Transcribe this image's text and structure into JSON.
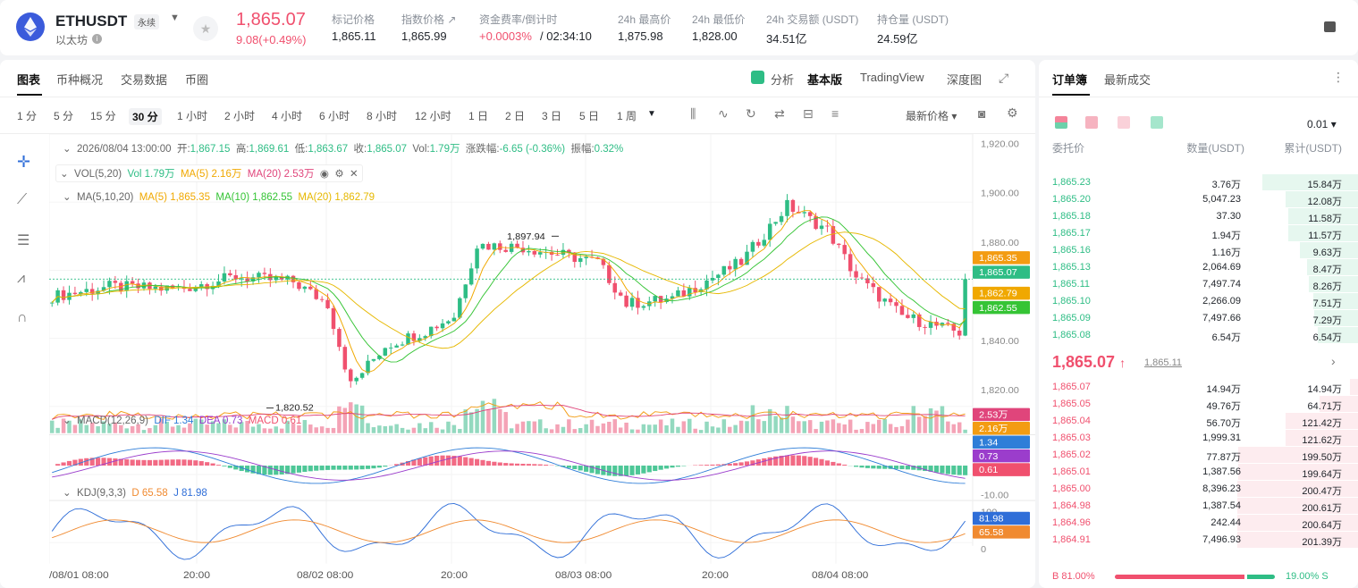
{
  "header": {
    "symbol": "ETHUSDT",
    "badge": "永续",
    "subname": "以太坊",
    "price": "1,865.07",
    "change": "9.08(+0.49%)",
    "stats": [
      {
        "label": "标记价格",
        "value": "1,865.11"
      },
      {
        "label": "指数价格 ↗",
        "value": "1,865.99"
      },
      {
        "label": "资金费率/倒计时",
        "value": "+0.0003%",
        "value2": "/ 02:34:10"
      },
      {
        "label": "24h 最高价",
        "value": "1,875.98"
      },
      {
        "label": "24h 最低价",
        "value": "1,828.00"
      },
      {
        "label": "24h 交易额 (USDT)",
        "value": "34.51亿"
      },
      {
        "label": "持仓量 (USDT)",
        "value": "24.59亿"
      }
    ],
    "colors": {
      "up": "#2ebd85",
      "down": "#f0506e"
    }
  },
  "chart": {
    "tabs": [
      "图表",
      "币种概况",
      "交易数据",
      "币圈"
    ],
    "right_tabs": [
      "分析",
      "基本版",
      "TradingView",
      "深度图"
    ],
    "timeframes": [
      "1 分",
      "5 分",
      "15 分",
      "30 分",
      "1 小时",
      "2 小时",
      "4 小时",
      "6 小时",
      "8 小时",
      "12 小时",
      "1 日",
      "2 日",
      "3 日",
      "5 日",
      "1 周"
    ],
    "active_tf": "30 分",
    "price_mode": "最新价格",
    "ohlc": {
      "date": "2026/08/04 13:00:00",
      "open_l": "开:",
      "open": "1,867.15",
      "high_l": "高:",
      "high": "1,869.61",
      "low_l": "低:",
      "low": "1,863.67",
      "close_l": "收:",
      "close": "1,865.07",
      "vol_l": "Vol:",
      "vol": "1.79万",
      "chg_l": "涨跌幅:",
      "chg": "-6.65 (-0.36%)",
      "amp_l": "振幅:",
      "amp": "0.32%"
    },
    "vol_legend": {
      "name": "VOL(5,20)",
      "vol": "Vol 1.79万",
      "ma5": "MA(5) 2.16万",
      "ma20": "MA(20) 2.53万"
    },
    "ma_legend": {
      "name": "MA(5,10,20)",
      "ma5": "MA(5) 1,865.35",
      "ma10": "MA(10) 1,862.55",
      "ma20": "MA(20) 1,862.79"
    },
    "macd_legend": {
      "name": "MACD(12,26,9)",
      "dif": "DIF 1.34",
      "dea": "DEA 0.73",
      "macd": "MACD 0.61"
    },
    "kdj_legend": {
      "name": "KDJ(9,3,3)",
      "d": "D 65.58",
      "j": "J 81.98"
    },
    "price_axis": [
      "1,920.00",
      "1,900.00",
      "1,880.00",
      "1,860.00",
      "1,840.00",
      "1,820.00"
    ],
    "price_tags": [
      {
        "v": "1,865.35",
        "c": "#f39c12"
      },
      {
        "v": "1,865.07",
        "c": "#2ebd85"
      },
      {
        "v": "1,862.79",
        "c": "#f0a800"
      },
      {
        "v": "1,862.55",
        "c": "#35c435"
      }
    ],
    "vol_tags": [
      {
        "v": "2.53万",
        "c": "#e0457b"
      },
      {
        "v": "2.16万",
        "c": "#f39c12"
      }
    ],
    "macd_tags": [
      {
        "v": "1.34",
        "c": "#2f7ed8"
      },
      {
        "v": "0.73",
        "c": "#9b3dcc"
      },
      {
        "v": "0.61",
        "c": "#f0506e"
      }
    ],
    "macd_axis": "-10.00",
    "kdj_axis": [
      "100",
      "0"
    ],
    "kdj_tags": [
      {
        "v": "81.98",
        "c": "#2f6ed8"
      },
      {
        "v": "65.58",
        "c": "#f08a30"
      }
    ],
    "hi_label": "1,897.94",
    "lo_label": "1,820.52",
    "x_labels": [
      "/08/01 08:00",
      "20:00",
      "08/02 08:00",
      "20:00",
      "08/03 08:00",
      "20:00",
      "08/04 08:00"
    ]
  },
  "book": {
    "tabs": [
      "订单簿",
      "最新成交"
    ],
    "precision": "0.01",
    "cols": [
      "委托价",
      "数量(USDT)",
      "累计(USDT)"
    ],
    "asks": [
      {
        "p": "1,865.23",
        "q": "3.76万",
        "c": "15.84万",
        "d": 0.79
      },
      {
        "p": "1,865.20",
        "q": "5,047.23",
        "c": "12.08万",
        "d": 0.6
      },
      {
        "p": "1,865.18",
        "q": "37.30",
        "c": "11.58万",
        "d": 0.58
      },
      {
        "p": "1,865.17",
        "q": "1.94万",
        "c": "11.57万",
        "d": 0.58
      },
      {
        "p": "1,865.16",
        "q": "1.16万",
        "c": "9.63万",
        "d": 0.48
      },
      {
        "p": "1,865.13",
        "q": "2,064.69",
        "c": "8.47万",
        "d": 0.42
      },
      {
        "p": "1,865.11",
        "q": "7,497.74",
        "c": "8.26万",
        "d": 0.41
      },
      {
        "p": "1,865.10",
        "q": "2,266.09",
        "c": "7.51万",
        "d": 0.37
      },
      {
        "p": "1,865.09",
        "q": "7,497.66",
        "c": "7.29万",
        "d": 0.36
      },
      {
        "p": "1,865.08",
        "q": "6.54万",
        "c": "6.54万",
        "d": 0.33
      }
    ],
    "last": "1,865.07",
    "last_arrow": "↑",
    "mark": "1,865.11",
    "bids": [
      {
        "p": "1,865.07",
        "q": "14.94万",
        "c": "14.94万",
        "d": 0.07
      },
      {
        "p": "1,865.05",
        "q": "49.76万",
        "c": "64.71万",
        "d": 0.32
      },
      {
        "p": "1,865.04",
        "q": "56.70万",
        "c": "121.42万",
        "d": 0.6
      },
      {
        "p": "1,865.03",
        "q": "1,999.31",
        "c": "121.62万",
        "d": 0.6
      },
      {
        "p": "1,865.02",
        "q": "77.87万",
        "c": "199.50万",
        "d": 0.99
      },
      {
        "p": "1,865.01",
        "q": "1,387.56",
        "c": "199.64万",
        "d": 0.99
      },
      {
        "p": "1,865.00",
        "q": "8,396.23",
        "c": "200.47万",
        "d": 1.0
      },
      {
        "p": "1,864.98",
        "q": "1,387.54",
        "c": "200.61万",
        "d": 1.0
      },
      {
        "p": "1,864.96",
        "q": "242.44",
        "c": "200.64万",
        "d": 1.0
      },
      {
        "p": "1,864.91",
        "q": "7,496.93",
        "c": "201.39万",
        "d": 1.0
      }
    ],
    "ratio": {
      "buy": "B 81.00%",
      "sell": "19.00% S",
      "buy_frac": 0.81
    }
  }
}
